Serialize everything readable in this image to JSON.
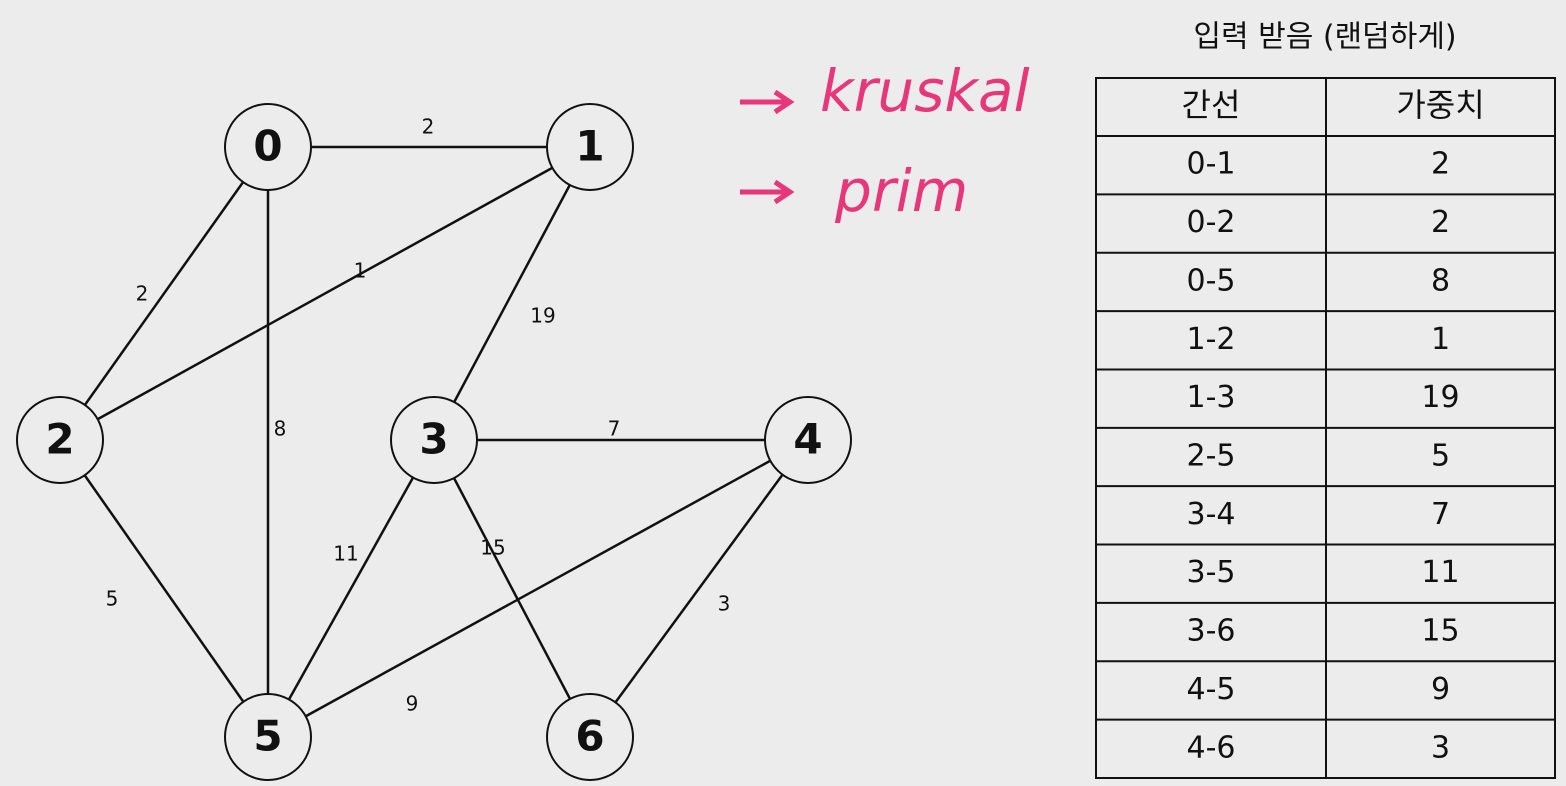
{
  "graph": {
    "nodes": [
      {
        "label": "0"
      },
      {
        "label": "1"
      },
      {
        "label": "2"
      },
      {
        "label": "3"
      },
      {
        "label": "4"
      },
      {
        "label": "5"
      },
      {
        "label": "6"
      }
    ],
    "edges": [
      {
        "weight": "2"
      },
      {
        "weight": "2"
      },
      {
        "weight": "8"
      },
      {
        "weight": "1"
      },
      {
        "weight": "19"
      },
      {
        "weight": "5"
      },
      {
        "weight": "7"
      },
      {
        "weight": "11"
      },
      {
        "weight": "15"
      },
      {
        "weight": "9"
      },
      {
        "weight": "3"
      }
    ]
  },
  "notes": [
    "kruskal",
    "prim"
  ],
  "caption": "입력 받음 (랜덤하게)",
  "table": {
    "header": [
      "간선",
      "가중치"
    ],
    "rows": [
      [
        "0-1",
        "2"
      ],
      [
        "0-2",
        "2"
      ],
      [
        "0-5",
        "8"
      ],
      [
        "1-2",
        "1"
      ],
      [
        "1-3",
        "19"
      ],
      [
        "2-5",
        "5"
      ],
      [
        "3-4",
        "7"
      ],
      [
        "3-5",
        "11"
      ],
      [
        "3-6",
        "15"
      ],
      [
        "4-5",
        "9"
      ],
      [
        "4-6",
        "3"
      ]
    ]
  }
}
